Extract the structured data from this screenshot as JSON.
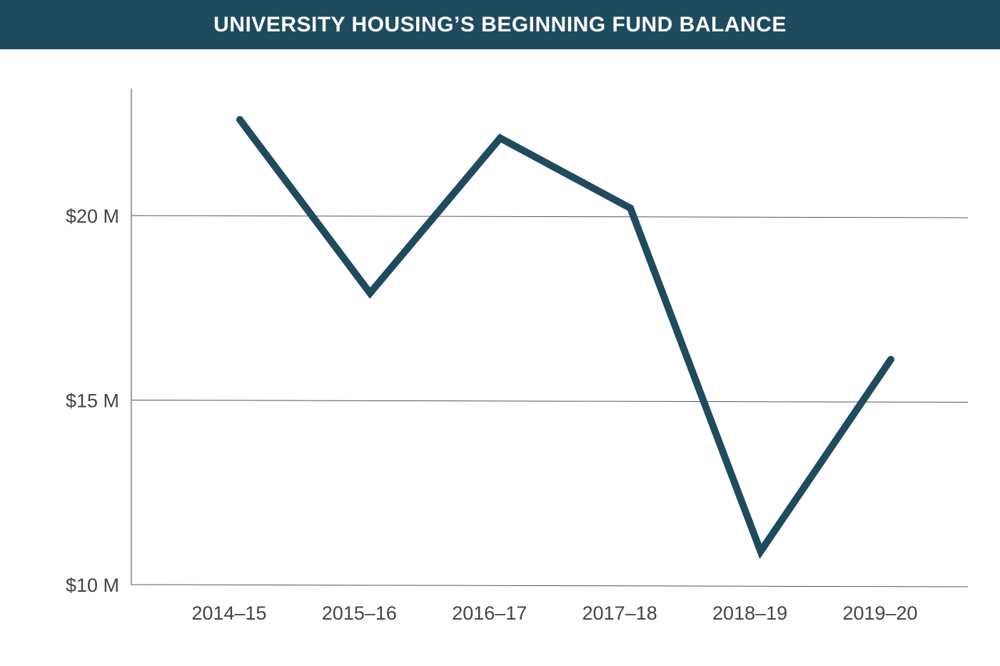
{
  "chart_data": {
    "type": "line",
    "title": "UNIVERSITY HOUSING’S BEGINNING FUND BALANCE",
    "xlabel": "",
    "ylabel": "",
    "categories": [
      "2014–15",
      "2015–16",
      "2016–17",
      "2017–18",
      "2018–19",
      "2019–20"
    ],
    "values": [
      22.6,
      17.9,
      22.1,
      20.2,
      10.9,
      16.1
    ],
    "ylim": [
      10,
      23.5
    ],
    "yticks": [
      10,
      15,
      20
    ],
    "ytick_labels": [
      "$10 M",
      "$15 M",
      "$20 M"
    ],
    "grid": true,
    "legend": "none",
    "colors": {
      "line": "#1f4b5e",
      "title_bar": "#1f4b5e",
      "gridline": "#555555"
    }
  }
}
